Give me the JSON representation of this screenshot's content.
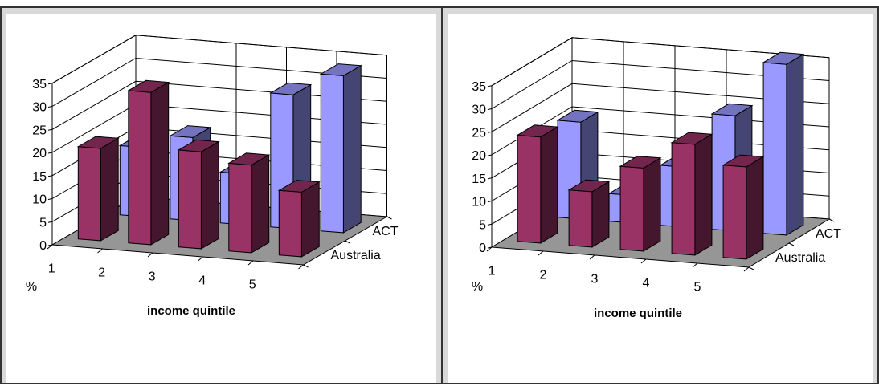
{
  "chart_data": [
    {
      "type": "bar",
      "subtype": "3d-clustered-columns",
      "categories": [
        "1",
        "2",
        "3",
        "4",
        "5"
      ],
      "series": [
        {
          "name": "Australia",
          "values": [
            20,
            33,
            21,
            19,
            14
          ],
          "color": "#993366"
        },
        {
          "name": "ACT",
          "values": [
            15,
            18,
            11,
            29,
            34
          ],
          "color": "#9999ff"
        }
      ],
      "xlabel": "income quintile",
      "ylabel": "%",
      "yticks": [
        "0",
        "5",
        "10",
        "15",
        "20",
        "25",
        "30",
        "35"
      ],
      "ylim": [
        0,
        35
      ],
      "grid": true
    },
    {
      "type": "bar",
      "subtype": "3d-clustered-columns",
      "categories": [
        "1",
        "2",
        "3",
        "4",
        "5"
      ],
      "series": [
        {
          "name": "Australia",
          "values": [
            23,
            12,
            18,
            24,
            20
          ],
          "color": "#993366"
        },
        {
          "name": "ACT",
          "values": [
            21,
            6,
            13,
            25,
            37
          ],
          "color": "#9999ff"
        }
      ],
      "xlabel": "income quintile",
      "ylabel": "%",
      "yticks": [
        "0",
        "5",
        "10",
        "15",
        "20",
        "25",
        "30",
        "35"
      ],
      "ylim": [
        0,
        35
      ],
      "grid": true
    }
  ]
}
